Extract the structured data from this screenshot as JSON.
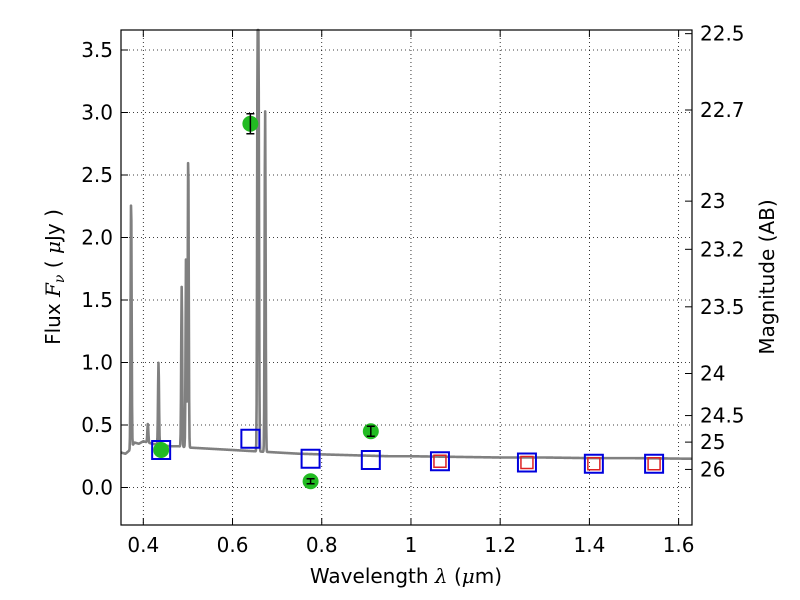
{
  "chart_data": {
    "type": "scatter",
    "xlabel": {
      "prefix": "Wavelength  ",
      "sym": "λ",
      "suffix": " (",
      "mu": "μ",
      "unit": "m)"
    },
    "ylabel": {
      "prefix": "Flux  ",
      "sym": "F",
      "sub": "ν",
      "mid": "  ( ",
      "mu": "μ",
      "unit": "Jy )"
    },
    "ylabel_right": "Magnitude (AB)",
    "xlim": [
      0.35,
      1.63
    ],
    "ylim": [
      -0.3,
      3.66
    ],
    "x_ticks": [
      0.4,
      0.6,
      0.8,
      1.0,
      1.2,
      1.4,
      1.6
    ],
    "x_tick_labels": [
      "0.4",
      "0.6",
      "0.8",
      "1",
      "1.2",
      "1.4",
      "1.6"
    ],
    "y_ticks": [
      0.0,
      0.5,
      1.0,
      1.5,
      2.0,
      2.5,
      3.0,
      3.5
    ],
    "y_tick_labels": [
      "0.0",
      "0.5",
      "1.0",
      "1.5",
      "2.0",
      "2.5",
      "3.0",
      "3.5"
    ],
    "mag_ticks": [
      {
        "label": "22.5",
        "mag": 22.5
      },
      {
        "label": "22.7",
        "mag": 22.7
      },
      {
        "label": "23",
        "mag": 23.0
      },
      {
        "label": "23.2",
        "mag": 23.2
      },
      {
        "label": "23.5",
        "mag": 23.5
      },
      {
        "label": "24",
        "mag": 24.0
      },
      {
        "label": "24.5",
        "mag": 24.5
      },
      {
        "label": "25",
        "mag": 25.0
      },
      {
        "label": "26",
        "mag": 26.0
      }
    ],
    "grid": true,
    "series": [
      {
        "role": "model_spectrum",
        "color": "#808080",
        "continuum": [
          [
            0.35,
            0.28
          ],
          [
            0.36,
            0.27
          ],
          [
            0.37,
            0.3
          ],
          [
            0.38,
            0.36
          ],
          [
            0.39,
            0.35
          ],
          [
            0.4,
            0.37
          ],
          [
            0.42,
            0.35
          ],
          [
            0.44,
            0.34
          ],
          [
            0.46,
            0.33
          ],
          [
            0.48,
            0.33
          ],
          [
            0.5,
            0.32
          ],
          [
            0.55,
            0.31
          ],
          [
            0.6,
            0.3
          ],
          [
            0.65,
            0.29
          ],
          [
            0.7,
            0.28
          ],
          [
            0.75,
            0.27
          ],
          [
            0.8,
            0.265
          ],
          [
            0.85,
            0.26
          ],
          [
            0.9,
            0.255
          ],
          [
            0.95,
            0.25
          ],
          [
            1.0,
            0.25
          ],
          [
            1.1,
            0.245
          ],
          [
            1.2,
            0.24
          ],
          [
            1.3,
            0.24
          ],
          [
            1.4,
            0.235
          ],
          [
            1.5,
            0.235
          ],
          [
            1.63,
            0.23
          ]
        ],
        "emission_lines": [
          {
            "x": 0.3727,
            "peak": 2.33
          },
          {
            "x": 0.4102,
            "peak": 0.51
          },
          {
            "x": 0.4341,
            "peak": 1.0
          },
          {
            "x": 0.4861,
            "peak": 1.61
          },
          {
            "x": 0.4959,
            "peak": 1.88
          },
          {
            "x": 0.5007,
            "peak": 2.68
          },
          {
            "x": 0.6563,
            "peak": 3.66
          },
          {
            "x": 0.6584,
            "peak": 3.1
          },
          {
            "x": 0.6731,
            "peak": 3.02
          }
        ]
      },
      {
        "role": "observed_photometry",
        "color": "#22bb22",
        "points": [
          {
            "x": 0.44,
            "y": 0.3,
            "err": 0.0
          },
          {
            "x": 0.64,
            "y": 2.91,
            "err": 0.08
          },
          {
            "x": 0.775,
            "y": 0.05,
            "err": 0.02
          },
          {
            "x": 0.91,
            "y": 0.45,
            "err": 0.04
          }
        ]
      },
      {
        "role": "model_photometry_a",
        "color": "#dd2222",
        "marker": "square",
        "points": [
          {
            "x": 1.065,
            "y": 0.21
          },
          {
            "x": 1.26,
            "y": 0.2
          },
          {
            "x": 1.41,
            "y": 0.19
          },
          {
            "x": 1.545,
            "y": 0.19
          }
        ]
      },
      {
        "role": "model_photometry_b",
        "color": "#0000dd",
        "marker": "square",
        "points": [
          {
            "x": 0.44,
            "y": 0.3
          },
          {
            "x": 0.64,
            "y": 0.39
          },
          {
            "x": 0.775,
            "y": 0.23
          },
          {
            "x": 0.91,
            "y": 0.22
          },
          {
            "x": 1.065,
            "y": 0.21
          },
          {
            "x": 1.26,
            "y": 0.2
          },
          {
            "x": 1.41,
            "y": 0.19
          },
          {
            "x": 1.545,
            "y": 0.19
          }
        ]
      }
    ]
  }
}
